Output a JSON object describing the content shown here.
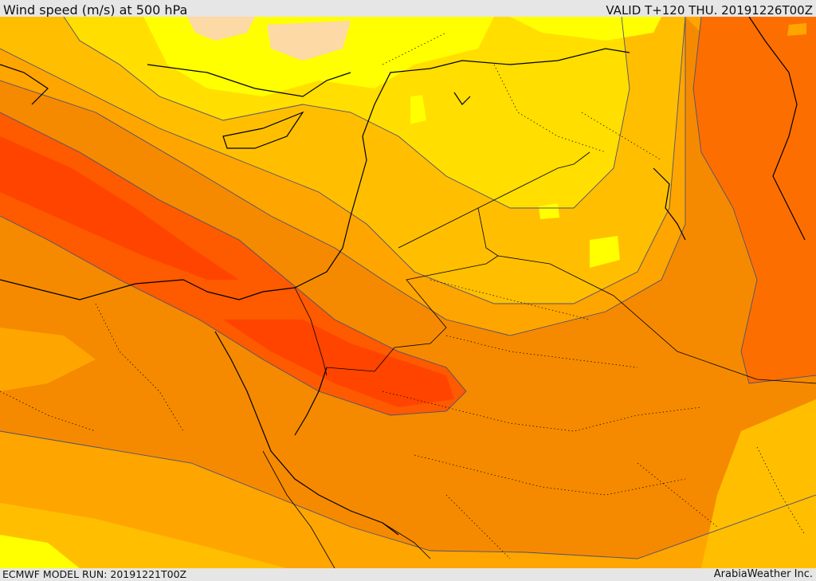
{
  "header": {
    "title": "Wind speed (m/s) at 500 hPa",
    "valid": "VALID T+120 THU. 20191226T00Z"
  },
  "footer": {
    "model_run": "ECMWF MODEL RUN: 20191221T00Z",
    "credit": "ArabiaWeather Inc."
  },
  "map": {
    "field": "wind-speed",
    "palette": {
      "lightest": "#fdd9a6",
      "yellow": "#ffff00",
      "gold": "#ffde00",
      "amber": "#ffbf00",
      "orange_light": "#ffa500",
      "orange": "#f58a00",
      "orange_dark": "#fd6e00",
      "red_orange": "#fe5a00",
      "red": "#ff4400",
      "coast": "#000000",
      "contour": "#505070"
    }
  }
}
